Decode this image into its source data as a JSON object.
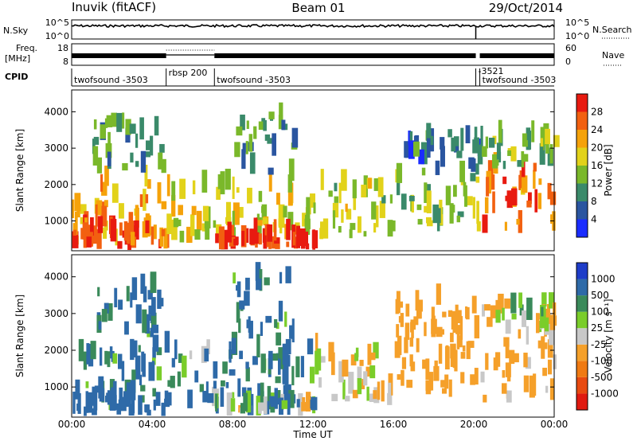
{
  "header": {
    "station": "Inuvik (fitACF)",
    "beam": "Beam 01",
    "date": "29/Oct/2014"
  },
  "labels": {
    "nsky": "N.Sky",
    "nsearch": "N.Search",
    "freq_line1": "Freq.",
    "freq_line2": "[MHz]",
    "nave": "Nave",
    "cpid": "CPID",
    "slant_range": "Slant Range [km]",
    "time_axis": "Time UT",
    "power_cb": "Power [dB]",
    "velocity_cb": "Velocity [m s⁻¹]",
    "nsky_ticks": [
      "10^5",
      "10^0"
    ],
    "nsearch_ticks": [
      "10^5",
      "10^0"
    ],
    "freq_ticks": [
      "18",
      "8"
    ],
    "nave_ticks": [
      "60",
      "0"
    ]
  },
  "cpid_segments": [
    {
      "start": 0.0,
      "end": 4.7,
      "label": "twofsound -3503"
    },
    {
      "start": 4.7,
      "end": 7.1,
      "label": "rbsp 200"
    },
    {
      "start": 7.1,
      "end": 20.1,
      "label": "twofsound -3503"
    },
    {
      "start": 20.1,
      "end": 20.3,
      "label": "-3521"
    },
    {
      "start": 20.3,
      "end": 24.0,
      "label": "twofsound -3503"
    }
  ],
  "chart_data": {
    "type": "heatmap",
    "x_ticks": [
      "00:00",
      "04:00",
      "08:00",
      "12:00",
      "16:00",
      "20:00",
      "00:00"
    ],
    "xlim_hours": [
      0,
      24
    ],
    "y_ticks": [
      "1000",
      "2000",
      "3000",
      "4000"
    ],
    "ylim_km": [
      180,
      4600
    ],
    "power": {
      "colorbar_ticks": [
        "4",
        "8",
        "12",
        "16",
        "20",
        "24",
        "28"
      ],
      "colorbar_range": [
        0,
        32
      ],
      "colors": [
        "#1a2cff",
        "#2a55a0",
        "#3a8a6a",
        "#7ab82a",
        "#e2d21a",
        "#f5a20a",
        "#f26010",
        "#e81a10"
      ]
    },
    "velocity": {
      "colorbar_ticks": [
        "1000",
        "500",
        "100",
        "25",
        "-25",
        "-100",
        "-500",
        "-1000"
      ],
      "colors": [
        "#1e3cc8",
        "#2e6aa8",
        "#3a8a5a",
        "#7acd2a",
        "#c8c8c8",
        "#f5a02a",
        "#f07a12",
        "#e84a10",
        "#e01a10"
      ]
    },
    "bands": [
      {
        "t0": 0.0,
        "t1": 4.7,
        "r0": 320,
        "r1": 2000,
        "p": 22,
        "v": 120
      },
      {
        "t0": 0.0,
        "t1": 4.7,
        "r0": 200,
        "r1": 700,
        "p": 27,
        "v": 260
      },
      {
        "t0": 1.0,
        "t1": 4.5,
        "r0": 2300,
        "r1": 3600,
        "p": 11,
        "v": 170
      },
      {
        "t0": 4.7,
        "t1": 7.1,
        "r0": 380,
        "r1": 1900,
        "p": 19,
        "v": 90
      },
      {
        "t0": 7.1,
        "t1": 12.0,
        "r0": 500,
        "r1": 1900,
        "p": 17,
        "v": 140
      },
      {
        "t0": 7.1,
        "t1": 12.0,
        "r0": 200,
        "r1": 500,
        "p": 28,
        "v": 40
      },
      {
        "t0": 8.0,
        "t1": 11.0,
        "r0": 2100,
        "r1": 3900,
        "p": 11,
        "v": 160
      },
      {
        "t0": 12.0,
        "t1": 16.0,
        "r0": 500,
        "r1": 1900,
        "p": 16,
        "v": -120
      },
      {
        "t0": 16.0,
        "t1": 20.2,
        "r0": 700,
        "r1": 2100,
        "p": 14,
        "v": -300
      },
      {
        "t0": 16.0,
        "t1": 20.2,
        "r0": 2200,
        "r1": 3300,
        "p": 8,
        "v": -260
      },
      {
        "t0": 20.3,
        "t1": 24.0,
        "r0": 450,
        "r1": 2400,
        "p": 24,
        "v": -180
      },
      {
        "t0": 20.3,
        "t1": 24.0,
        "r0": 2400,
        "r1": 3200,
        "p": 13,
        "v": -60
      }
    ]
  }
}
